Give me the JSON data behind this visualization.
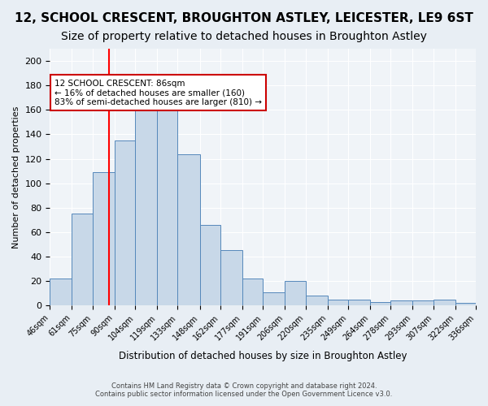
{
  "title": "12, SCHOOL CRESCENT, BROUGHTON ASTLEY, LEICESTER, LE9 6ST",
  "subtitle": "Size of property relative to detached houses in Broughton Astley",
  "xlabel": "Distribution of detached houses by size in Broughton Astley",
  "ylabel": "Number of detached properties",
  "footer_line1": "Contains HM Land Registry data © Crown copyright and database right 2024.",
  "footer_line2": "Contains public sector information licensed under the Open Government Licence v3.0.",
  "bin_labels": [
    "46sqm",
    "61sqm",
    "75sqm",
    "90sqm",
    "104sqm",
    "119sqm",
    "133sqm",
    "148sqm",
    "162sqm",
    "177sqm",
    "191sqm",
    "206sqm",
    "220sqm",
    "235sqm",
    "249sqm",
    "264sqm",
    "278sqm",
    "293sqm",
    "307sqm",
    "322sqm",
    "336sqm"
  ],
  "bar_heights": [
    22,
    75,
    109,
    135,
    170,
    160,
    124,
    66,
    45,
    22,
    11,
    20,
    8,
    5,
    5,
    3,
    4,
    4,
    5,
    2
  ],
  "bin_edges": [
    46,
    61,
    75,
    90,
    104,
    119,
    133,
    148,
    162,
    177,
    191,
    206,
    220,
    235,
    249,
    264,
    278,
    293,
    307,
    322,
    336
  ],
  "bar_color": "#c8d8e8",
  "bar_edge_color": "#5588bb",
  "red_line_x": 86,
  "annotation_text": "12 SCHOOL CRESCENT: 86sqm\n← 16% of detached houses are smaller (160)\n83% of semi-detached houses are larger (810) →",
  "annotation_box_color": "#ffffff",
  "annotation_box_edge_color": "#cc0000",
  "ylim": [
    0,
    210
  ],
  "yticks": [
    0,
    20,
    40,
    60,
    80,
    100,
    120,
    140,
    160,
    180,
    200
  ],
  "bg_color": "#e8eef4",
  "plot_bg_color": "#f0f4f8",
  "title_fontsize": 11,
  "subtitle_fontsize": 10
}
